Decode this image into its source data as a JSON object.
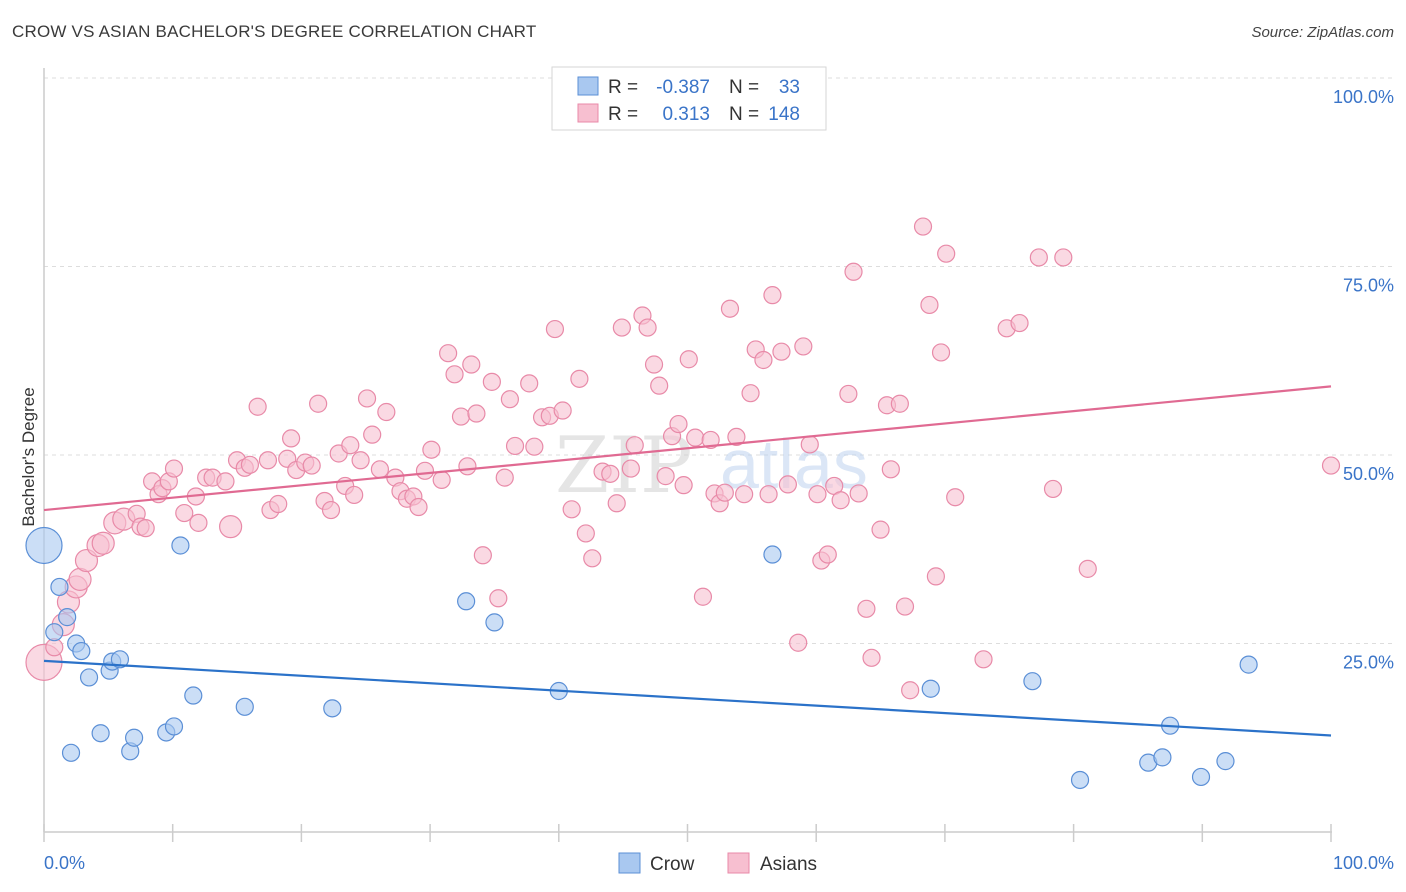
{
  "header": {
    "title": "CROW VS ASIAN BACHELOR'S DEGREE CORRELATION CHART",
    "source": "Source: ZipAtlas.com"
  },
  "watermark": {
    "zip": "ZIP",
    "atlas": "atlas"
  },
  "legend": {
    "r_label": "R =",
    "n_label": "N =",
    "rows": [
      {
        "r": "-0.387",
        "n": "33"
      },
      {
        "r": "0.313",
        "n": "148"
      }
    ]
  },
  "colors": {
    "crow_fill": "#a9c8f0",
    "crow_stroke": "#5b8fd6",
    "crow_line": "#2b72c9",
    "asian_fill": "#f7bfd0",
    "asian_stroke": "#e88aa8",
    "asian_line": "#e06a92",
    "tick_text": "#3a74c8",
    "grid": "#dddddd"
  },
  "chart_data": {
    "type": "scatter",
    "title": "CROW VS ASIAN BACHELOR'S DEGREE CORRELATION CHART",
    "xlabel": "",
    "ylabel": "Bachelor's Degree",
    "xlim": [
      0,
      100
    ],
    "ylim": [
      0,
      100
    ],
    "x_tick_labels": [
      "0.0%",
      "100.0%"
    ],
    "y_tick_labels": [
      "100.0%",
      "75.0%",
      "50.0%",
      "25.0%"
    ],
    "y_ticks": [
      100,
      75,
      50,
      25
    ],
    "grid": true,
    "legend_position": "bottom-center",
    "series": [
      {
        "name": "Crow",
        "r": -0.387,
        "n": 33,
        "trend": {
          "x": [
            0,
            100
          ],
          "y": [
            22.7,
            12.8
          ]
        },
        "points": [
          [
            0,
            38,
            3
          ],
          [
            1.2,
            32.5,
            1
          ],
          [
            1.8,
            28.5,
            1
          ],
          [
            0.8,
            26.5,
            1
          ],
          [
            2.5,
            25,
            1
          ],
          [
            2.9,
            24,
            1
          ],
          [
            3.5,
            20.5,
            1
          ],
          [
            5.1,
            21.4,
            1
          ],
          [
            5.3,
            22.6,
            1
          ],
          [
            5.9,
            22.9,
            1
          ],
          [
            2.1,
            10.5,
            1
          ],
          [
            4.4,
            13.1,
            1
          ],
          [
            6.7,
            10.7,
            1
          ],
          [
            7,
            12.5,
            1
          ],
          [
            9.5,
            13.2,
            1
          ],
          [
            10.1,
            14,
            1
          ],
          [
            10.6,
            38,
            1
          ],
          [
            11.6,
            18.1,
            1
          ],
          [
            15.6,
            16.6,
            1
          ],
          [
            22.4,
            16.4,
            1
          ],
          [
            32.8,
            30.6,
            1
          ],
          [
            35,
            27.8,
            1
          ],
          [
            40,
            18.7,
            1
          ],
          [
            56.6,
            36.8,
            1
          ],
          [
            68.9,
            19,
            1
          ],
          [
            76.8,
            20,
            1
          ],
          [
            80.5,
            6.9,
            1
          ],
          [
            85.8,
            9.2,
            1
          ],
          [
            86.9,
            9.9,
            1
          ],
          [
            87.5,
            14.1,
            1
          ],
          [
            89.9,
            7.3,
            1
          ],
          [
            91.8,
            9.4,
            1
          ],
          [
            93.6,
            22.2,
            1
          ]
        ]
      },
      {
        "name": "Asians",
        "r": 0.313,
        "n": 148,
        "trend": {
          "x": [
            0,
            100
          ],
          "y": [
            42.7,
            59.1
          ]
        },
        "points": [
          [
            0,
            22.5,
            3
          ],
          [
            0.8,
            24.5,
            1
          ],
          [
            1.5,
            27.5,
            2
          ],
          [
            1.9,
            30.5,
            2
          ],
          [
            2.5,
            32.5,
            2
          ],
          [
            2.8,
            33.5,
            2
          ],
          [
            3.3,
            36,
            2
          ],
          [
            4.2,
            38,
            2
          ],
          [
            4.6,
            38.3,
            2
          ],
          [
            5.5,
            41,
            2
          ],
          [
            6.2,
            41.5,
            2
          ],
          [
            7.2,
            42.2,
            1
          ],
          [
            7.5,
            40.5,
            1
          ],
          [
            7.9,
            40.3,
            1
          ],
          [
            8.4,
            46.5,
            1
          ],
          [
            8.9,
            44.8,
            1
          ],
          [
            9.2,
            45.6,
            1
          ],
          [
            9.7,
            46.5,
            1
          ],
          [
            10.1,
            48.2,
            1
          ],
          [
            10.9,
            42.3,
            1
          ],
          [
            11.8,
            44.5,
            1
          ],
          [
            12,
            41,
            1
          ],
          [
            12.6,
            47,
            1
          ],
          [
            13.1,
            47,
            1
          ],
          [
            14.1,
            46.5,
            1
          ],
          [
            14.5,
            40.5,
            2
          ],
          [
            15,
            49.3,
            1
          ],
          [
            15.6,
            48.3,
            1
          ],
          [
            16,
            48.7,
            1
          ],
          [
            16.6,
            56.4,
            1
          ],
          [
            17.4,
            49.3,
            1
          ],
          [
            17.6,
            42.7,
            1
          ],
          [
            18.2,
            43.5,
            1
          ],
          [
            18.9,
            49.5,
            1
          ],
          [
            19.2,
            52.2,
            1
          ],
          [
            19.6,
            48,
            1
          ],
          [
            20.3,
            49,
            1
          ],
          [
            20.8,
            48.6,
            1
          ],
          [
            21.3,
            56.8,
            1
          ],
          [
            21.8,
            43.9,
            1
          ],
          [
            22.3,
            42.7,
            1
          ],
          [
            22.9,
            50.2,
            1
          ],
          [
            23.4,
            45.9,
            1
          ],
          [
            23.8,
            51.3,
            1
          ],
          [
            24.1,
            44.7,
            1
          ],
          [
            24.6,
            49.3,
            1
          ],
          [
            25.1,
            57.5,
            1
          ],
          [
            25.5,
            52.7,
            1
          ],
          [
            26.1,
            48.1,
            1
          ],
          [
            26.6,
            55.7,
            1
          ],
          [
            27.3,
            47,
            1
          ],
          [
            27.7,
            45.2,
            1
          ],
          [
            28.2,
            44.2,
            1
          ],
          [
            28.7,
            44.5,
            1
          ],
          [
            29.1,
            43.1,
            1
          ],
          [
            29.6,
            47.9,
            1
          ],
          [
            30.1,
            50.7,
            1
          ],
          [
            30.9,
            46.7,
            1
          ],
          [
            31.4,
            63.5,
            1
          ],
          [
            31.9,
            60.7,
            1
          ],
          [
            32.4,
            55.1,
            1
          ],
          [
            32.9,
            48.5,
            1
          ],
          [
            33.2,
            62,
            1
          ],
          [
            33.6,
            55.5,
            1
          ],
          [
            34.1,
            36.7,
            1
          ],
          [
            34.8,
            59.7,
            1
          ],
          [
            35.3,
            31,
            1
          ],
          [
            35.8,
            47,
            1
          ],
          [
            36.2,
            57.4,
            1
          ],
          [
            36.6,
            51.2,
            1
          ],
          [
            37.7,
            59.5,
            1
          ],
          [
            38.1,
            51.1,
            1
          ],
          [
            38.7,
            55,
            1
          ],
          [
            39.3,
            55.2,
            1
          ],
          [
            39.7,
            66.7,
            1
          ],
          [
            40.3,
            55.9,
            1
          ],
          [
            41,
            42.8,
            1
          ],
          [
            41.6,
            60.1,
            1
          ],
          [
            42.1,
            39.6,
            1
          ],
          [
            42.6,
            36.3,
            1
          ],
          [
            43.4,
            47.8,
            1
          ],
          [
            44,
            47.5,
            1
          ],
          [
            44.5,
            43.6,
            1
          ],
          [
            44.9,
            66.9,
            1
          ],
          [
            45.6,
            48.2,
            1
          ],
          [
            45.9,
            51.3,
            1
          ],
          [
            46.5,
            68.5,
            1
          ],
          [
            46.9,
            66.9,
            1
          ],
          [
            47.4,
            62,
            1
          ],
          [
            47.8,
            59.2,
            1
          ],
          [
            48.3,
            47.2,
            1
          ],
          [
            48.8,
            52.5,
            1
          ],
          [
            49.3,
            54.1,
            1
          ],
          [
            49.7,
            46,
            1
          ],
          [
            50.1,
            62.7,
            1
          ],
          [
            50.6,
            52.3,
            1
          ],
          [
            51.2,
            31.2,
            1
          ],
          [
            51.8,
            52,
            1
          ],
          [
            52.1,
            44.9,
            1
          ],
          [
            52.5,
            43.6,
            1
          ],
          [
            52.9,
            45,
            1
          ],
          [
            53.3,
            69.4,
            1
          ],
          [
            53.8,
            52.4,
            1
          ],
          [
            54.4,
            44.8,
            1
          ],
          [
            54.9,
            58.2,
            1
          ],
          [
            55.3,
            64,
            1
          ],
          [
            55.9,
            62.6,
            1
          ],
          [
            56.3,
            44.8,
            1
          ],
          [
            56.6,
            71.2,
            1
          ],
          [
            57.3,
            63.7,
            1
          ],
          [
            57.8,
            46.1,
            1
          ],
          [
            58.6,
            25.1,
            1
          ],
          [
            59,
            64.4,
            1
          ],
          [
            59.5,
            51.4,
            1
          ],
          [
            60.1,
            44.8,
            1
          ],
          [
            60.4,
            36,
            1
          ],
          [
            60.9,
            36.8,
            1
          ],
          [
            61.4,
            45.9,
            1
          ],
          [
            61.9,
            44,
            1
          ],
          [
            62.5,
            58.1,
            1
          ],
          [
            62.9,
            74.3,
            1
          ],
          [
            63.3,
            44.9,
            1
          ],
          [
            63.9,
            29.6,
            1
          ],
          [
            64.3,
            23.1,
            1
          ],
          [
            65,
            40.1,
            1
          ],
          [
            65.5,
            56.6,
            1
          ],
          [
            65.8,
            48.1,
            1
          ],
          [
            66.5,
            56.8,
            1
          ],
          [
            66.9,
            29.9,
            1
          ],
          [
            67.3,
            18.8,
            1
          ],
          [
            68.3,
            80.3,
            1
          ],
          [
            68.8,
            69.9,
            1
          ],
          [
            69.3,
            33.9,
            1
          ],
          [
            69.7,
            63.6,
            1
          ],
          [
            70.1,
            76.7,
            1
          ],
          [
            70.8,
            44.4,
            1
          ],
          [
            73,
            22.9,
            1
          ],
          [
            74.8,
            66.8,
            1
          ],
          [
            75.8,
            67.5,
            1
          ],
          [
            77.3,
            76.2,
            1
          ],
          [
            78.4,
            45.5,
            1
          ],
          [
            79.2,
            76.2,
            1
          ],
          [
            81.1,
            34.9,
            1
          ],
          [
            100,
            48.6,
            1
          ]
        ]
      }
    ]
  }
}
